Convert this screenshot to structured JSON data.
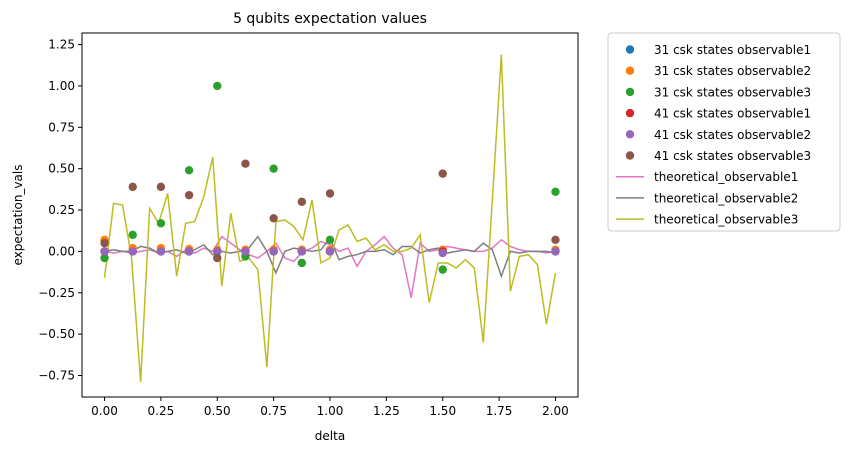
{
  "chart_data": {
    "type": "scatter",
    "title": "5 qubits expectation values",
    "xlabel": "delta",
    "ylabel": "expectation_vals",
    "xlim": [
      -0.1,
      2.1
    ],
    "ylim": [
      -0.88,
      1.32
    ],
    "xticks": [
      0.0,
      0.25,
      0.5,
      0.75,
      1.0,
      1.25,
      1.5,
      1.75,
      2.0
    ],
    "xtick_labels": [
      "0.00",
      "0.25",
      "0.50",
      "0.75",
      "1.00",
      "1.25",
      "1.50",
      "1.75",
      "2.00"
    ],
    "yticks": [
      -0.75,
      -0.5,
      -0.25,
      0.0,
      0.25,
      0.5,
      0.75,
      1.0,
      1.25
    ],
    "ytick_labels": [
      "−0.75",
      "−0.50",
      "−0.25",
      "0.00",
      "0.25",
      "0.50",
      "0.75",
      "1.00",
      "1.25"
    ],
    "grid": false,
    "legend_placement": "outside-right-top",
    "scatter_x": [
      0.0,
      0.125,
      0.25,
      0.375,
      0.5,
      0.625,
      0.75,
      0.875,
      1.0,
      1.5,
      2.0
    ],
    "series": [
      {
        "name": "31 csk states observable1",
        "kind": "scatter",
        "color": "#1f77b4",
        "y": [
          0.0,
          0.0,
          0.0,
          0.0,
          0.0,
          0.0,
          0.0,
          0.0,
          0.0,
          0.0,
          0.0
        ]
      },
      {
        "name": "31 csk states observable2",
        "kind": "scatter",
        "color": "#ff7f0e",
        "y": [
          0.07,
          0.02,
          0.02,
          0.015,
          0.01,
          0.01,
          0.01,
          0.01,
          0.01,
          0.01,
          0.01
        ]
      },
      {
        "name": "31 csk states observable3",
        "kind": "scatter",
        "color": "#2ca02c",
        "y": [
          -0.04,
          0.1,
          0.17,
          0.49,
          1.0,
          -0.03,
          0.5,
          -0.07,
          0.07,
          -0.11,
          0.36
        ]
      },
      {
        "name": "41 csk states observable1",
        "kind": "scatter",
        "color": "#d62728",
        "y": [
          0.0,
          0.0,
          0.0,
          0.0,
          0.0,
          0.0,
          0.0,
          0.0,
          0.0,
          0.0,
          0.0
        ]
      },
      {
        "name": "41 csk states observable2",
        "kind": "scatter",
        "color": "#9467bd",
        "y": [
          0.0,
          0.0,
          0.0,
          0.0,
          0.0,
          0.0,
          0.0,
          0.0,
          0.0,
          -0.01,
          0.0
        ]
      },
      {
        "name": "41 csk states observable3",
        "kind": "scatter",
        "color": "#8c564b",
        "y": [
          0.05,
          0.39,
          0.39,
          0.34,
          -0.04,
          0.53,
          0.2,
          0.3,
          0.35,
          0.47,
          0.07
        ]
      },
      {
        "name": "theoretical_observable1",
        "kind": "line",
        "color": "#e377c2",
        "x": [
          0.0,
          0.04,
          0.08,
          0.12,
          0.16,
          0.2,
          0.24,
          0.28,
          0.32,
          0.36,
          0.4,
          0.44,
          0.48,
          0.52,
          0.56,
          0.6,
          0.64,
          0.68,
          0.72,
          0.76,
          0.8,
          0.84,
          0.88,
          0.92,
          0.96,
          1.0,
          1.04,
          1.08,
          1.12,
          1.16,
          1.2,
          1.24,
          1.28,
          1.32,
          1.36,
          1.4,
          1.44,
          1.48,
          1.52,
          1.56,
          1.6,
          1.64,
          1.68,
          1.72,
          1.76,
          1.8,
          1.84,
          1.88,
          1.92,
          1.96,
          2.0
        ],
        "y": [
          0.0,
          -0.01,
          0.0,
          -0.01,
          0.0,
          0.01,
          -0.01,
          0.0,
          -0.03,
          0.01,
          -0.01,
          0.02,
          0.0,
          0.09,
          0.05,
          0.01,
          -0.02,
          -0.04,
          0.0,
          0.05,
          -0.04,
          -0.06,
          0.0,
          0.02,
          0.06,
          0.04,
          0.0,
          0.02,
          -0.09,
          0.0,
          0.04,
          0.09,
          0.02,
          -0.02,
          -0.28,
          0.05,
          0.0,
          0.01,
          0.03,
          0.02,
          0.01,
          0.0,
          0.0,
          0.02,
          0.07,
          0.03,
          0.01,
          0.0,
          0.0,
          -0.01,
          0.0
        ]
      },
      {
        "name": "theoretical_observable2",
        "kind": "line",
        "color": "#7f7f7f",
        "x": [
          0.0,
          0.04,
          0.08,
          0.12,
          0.16,
          0.2,
          0.24,
          0.28,
          0.32,
          0.36,
          0.4,
          0.44,
          0.48,
          0.52,
          0.56,
          0.6,
          0.64,
          0.68,
          0.72,
          0.76,
          0.8,
          0.84,
          0.88,
          0.92,
          0.96,
          1.0,
          1.04,
          1.08,
          1.12,
          1.16,
          1.2,
          1.24,
          1.28,
          1.32,
          1.36,
          1.4,
          1.44,
          1.48,
          1.52,
          1.56,
          1.6,
          1.64,
          1.68,
          1.72,
          1.76,
          1.8,
          1.84,
          1.88,
          1.92,
          1.96,
          2.0
        ],
        "y": [
          0.0,
          0.01,
          0.0,
          0.0,
          0.03,
          0.02,
          -0.01,
          0.0,
          0.01,
          -0.01,
          0.01,
          0.04,
          -0.02,
          0.0,
          -0.01,
          0.0,
          0.02,
          0.09,
          0.0,
          -0.13,
          0.0,
          0.02,
          0.01,
          0.0,
          0.01,
          0.08,
          -0.05,
          -0.03,
          -0.02,
          0.0,
          0.0,
          0.01,
          -0.02,
          0.03,
          0.03,
          -0.01,
          0.01,
          0.02,
          -0.01,
          0.0,
          0.01,
          0.0,
          0.05,
          0.01,
          -0.15,
          0.0,
          -0.01,
          0.0,
          0.0,
          0.0,
          -0.01
        ]
      },
      {
        "name": "theoretical_observable3",
        "kind": "line",
        "color": "#bcbd22",
        "x": [
          0.0,
          0.04,
          0.08,
          0.12,
          0.16,
          0.2,
          0.24,
          0.28,
          0.32,
          0.36,
          0.4,
          0.44,
          0.48,
          0.52,
          0.56,
          0.6,
          0.64,
          0.68,
          0.72,
          0.76,
          0.8,
          0.84,
          0.88,
          0.92,
          0.96,
          1.0,
          1.04,
          1.08,
          1.12,
          1.16,
          1.2,
          1.24,
          1.28,
          1.32,
          1.36,
          1.4,
          1.44,
          1.48,
          1.52,
          1.56,
          1.6,
          1.64,
          1.68,
          1.72,
          1.76,
          1.8,
          1.84,
          1.88,
          1.92,
          1.96,
          2.0
        ],
        "y": [
          -0.16,
          0.29,
          0.28,
          -0.04,
          -0.79,
          0.26,
          0.17,
          0.35,
          -0.15,
          0.17,
          0.18,
          0.33,
          0.57,
          -0.21,
          0.23,
          -0.06,
          -0.04,
          -0.11,
          -0.7,
          0.18,
          0.19,
          0.15,
          0.07,
          0.31,
          -0.07,
          -0.04,
          0.13,
          0.16,
          0.06,
          0.08,
          0.01,
          0.04,
          0.0,
          0.0,
          0.02,
          0.1,
          -0.31,
          -0.07,
          -0.07,
          -0.1,
          -0.05,
          -0.1,
          -0.55,
          0.31,
          1.19,
          -0.24,
          -0.03,
          -0.02,
          -0.08,
          -0.44,
          -0.13
        ]
      }
    ]
  }
}
